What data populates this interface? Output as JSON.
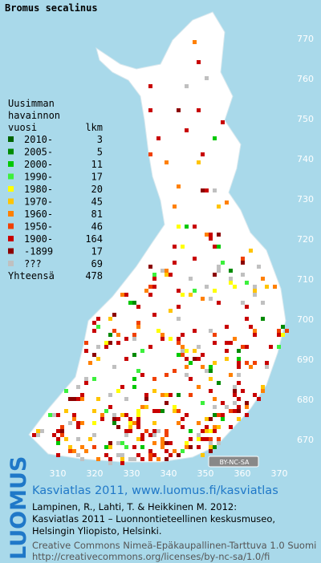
{
  "title": "Bromus secalinus",
  "legend": {
    "heading": [
      "Uusimman",
      "havainnon"
    ],
    "columns": [
      "vuosi",
      "lkm"
    ],
    "rows": [
      {
        "label": "2010-",
        "count": 3,
        "color": "#006400"
      },
      {
        "label": "2005-",
        "count": 5,
        "color": "#008a00"
      },
      {
        "label": "2000-",
        "count": 11,
        "color": "#00c800"
      },
      {
        "label": "1990-",
        "count": 17,
        "color": "#3cf03c"
      },
      {
        "label": "1980-",
        "count": 20,
        "color": "#ffff00"
      },
      {
        "label": "1970-",
        "count": 45,
        "color": "#ffc400"
      },
      {
        "label": "1960-",
        "count": 81,
        "color": "#ff8000"
      },
      {
        "label": "1950-",
        "count": 46,
        "color": "#f04000"
      },
      {
        "label": "1900-",
        "count": 164,
        "color": "#c80000"
      },
      {
        "label": "-1899",
        "count": 17,
        "color": "#8c0000"
      },
      {
        "label": "???",
        "count": 69,
        "color": "#c0c0c0"
      }
    ],
    "total_label": "Yhteensä",
    "total": 478
  },
  "grid": {
    "y_labels": [
      770,
      760,
      750,
      740,
      730,
      720,
      710,
      700,
      690,
      680,
      670
    ],
    "x_labels": [
      310,
      320,
      330,
      340,
      350,
      360,
      370
    ]
  },
  "license_badge": "BY-NC-SA",
  "logo": "LUOMUS",
  "footer": {
    "link": "Kasviatlas 2011, www.luomus.fi/kasviatlas",
    "citation": [
      "Lampinen, R., Lahti, T. & Heikkinen M. 2012:",
      "Kasviatlas 2011 – Luonnontieteellinen keskusmuseo,",
      "Helsingin Yliopisto, Helsinki."
    ],
    "license": [
      "Creative Commons Nimeä-Epäkaupallinen-Tarttuva 1.0 Suomi",
      "http://creativecommons.org/licenses/by-nc-sa/1.0/fi"
    ]
  }
}
